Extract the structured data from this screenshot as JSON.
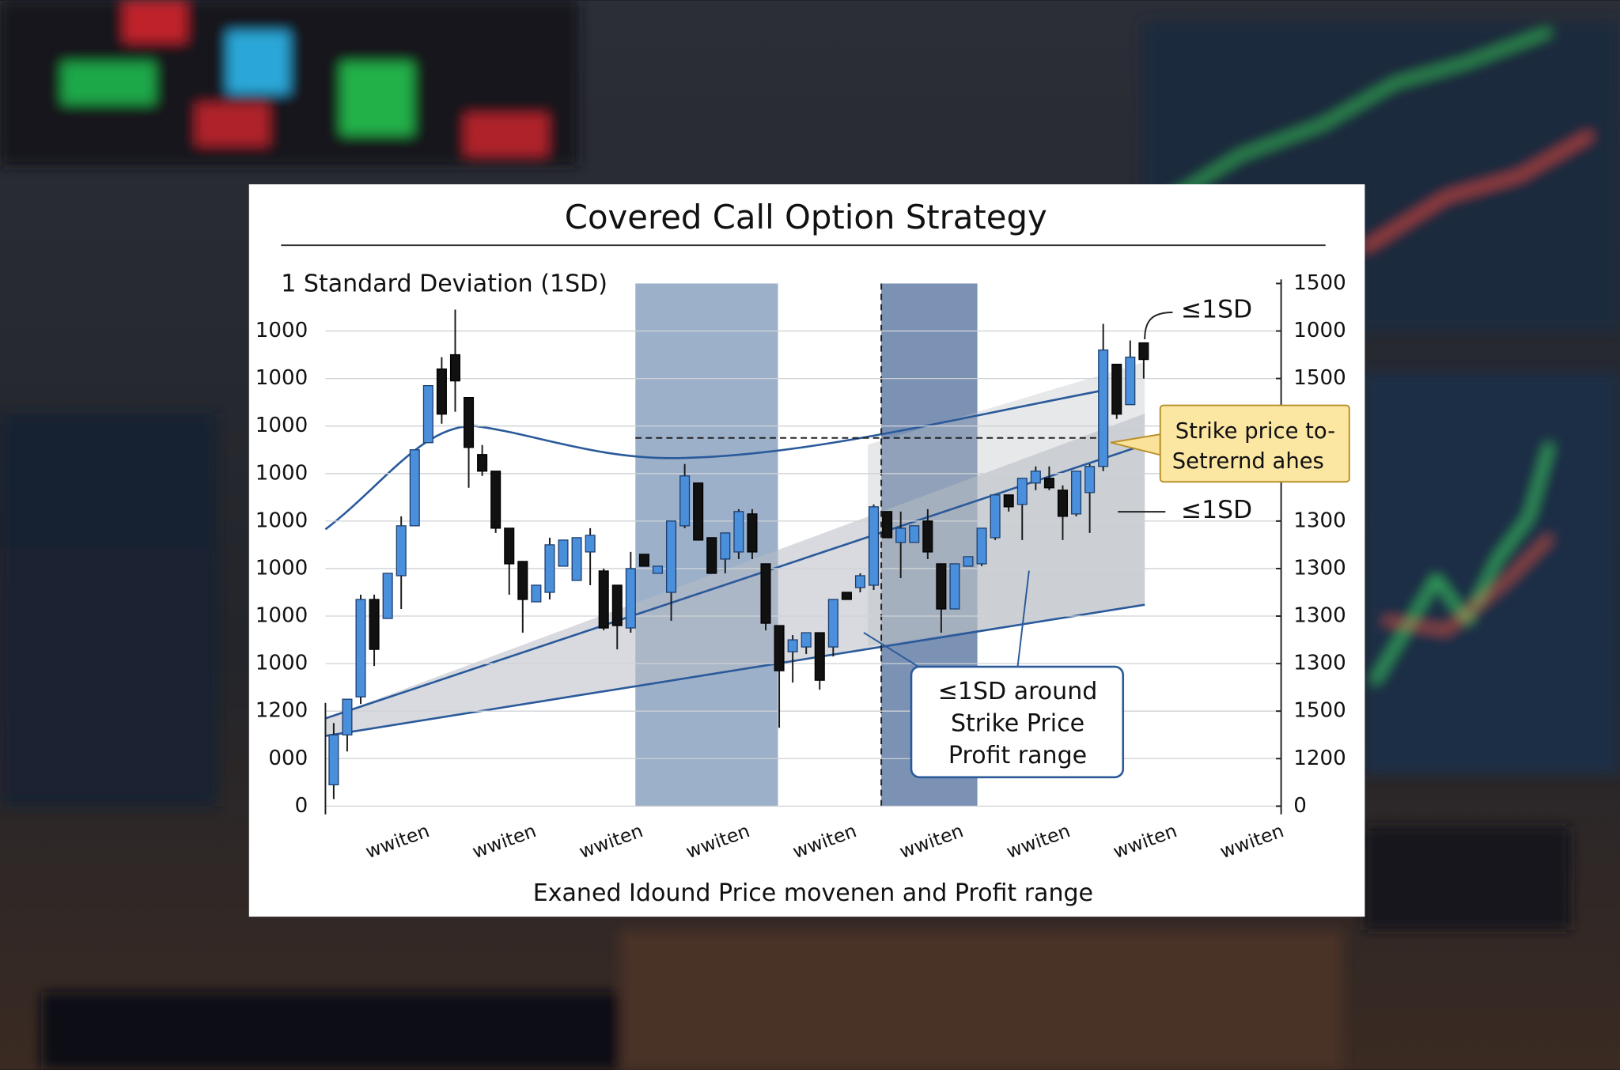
{
  "chart_data": {
    "type": "candlestick",
    "title": "Covered Call Option Strategy",
    "y_label": "1 Standard Deviation (1SD)",
    "x_label": "Exaned Idound Price movenen and Profit range",
    "x_tick_labels": [
      "wwiten",
      "wwiten",
      "wwiten",
      "wwiten",
      "wwiten",
      "wwiten",
      "wwiten",
      "wwiten",
      "wwiten"
    ],
    "open": [
      45,
      150,
      230,
      435,
      395,
      485,
      590,
      765,
      920,
      950,
      860,
      740,
      705,
      585,
      515,
      430,
      450,
      505,
      475,
      535,
      495,
      465,
      375,
      530,
      490,
      450,
      590,
      680,
      565,
      520,
      535,
      615,
      510,
      380,
      325,
      335,
      365,
      335,
      450,
      460,
      465,
      620,
      555,
      555,
      600,
      510,
      415,
      505,
      510,
      565,
      655,
      635,
      680,
      690,
      665,
      615,
      660,
      715,
      930,
      845,
      975
    ],
    "high": [
      175,
      225,
      445,
      445,
      490,
      610,
      750,
      885,
      945,
      1045,
      860,
      760,
      705,
      585,
      515,
      465,
      565,
      560,
      565,
      585,
      500,
      465,
      535,
      530,
      505,
      600,
      720,
      680,
      565,
      575,
      625,
      625,
      510,
      380,
      360,
      365,
      365,
      435,
      450,
      490,
      635,
      620,
      620,
      590,
      625,
      510,
      510,
      525,
      585,
      655,
      655,
      690,
      715,
      715,
      675,
      705,
      720,
      1015,
      930,
      980,
      975
    ],
    "low": [
      15,
      115,
      215,
      295,
      395,
      415,
      590,
      765,
      805,
      830,
      670,
      695,
      575,
      445,
      365,
      430,
      435,
      505,
      475,
      465,
      370,
      330,
      365,
      505,
      490,
      390,
      585,
      560,
      490,
      490,
      520,
      520,
      370,
      165,
      260,
      320,
      245,
      315,
      435,
      450,
      455,
      565,
      480,
      555,
      520,
      365,
      415,
      505,
      505,
      560,
      620,
      560,
      665,
      665,
      560,
      610,
      575,
      705,
      815,
      845,
      900
    ],
    "close": [
      150,
      225,
      435,
      330,
      490,
      590,
      750,
      885,
      825,
      895,
      755,
      705,
      585,
      510,
      435,
      465,
      550,
      560,
      565,
      570,
      375,
      380,
      500,
      505,
      505,
      600,
      695,
      560,
      490,
      575,
      620,
      535,
      385,
      285,
      350,
      365,
      265,
      435,
      435,
      485,
      630,
      565,
      585,
      590,
      535,
      415,
      510,
      525,
      585,
      655,
      630,
      690,
      705,
      670,
      610,
      705,
      715,
      960,
      825,
      945,
      940
    ],
    "up_color": "#4a8fdc",
    "down_color": "#111111",
    "ylim": [
      0,
      1100
    ],
    "yticks": [
      0,
      {
        "value": 100,
        "label": "000"
      },
      {
        "value": 200,
        "label": "1200"
      },
      {
        "value": 300,
        "label": "1000"
      },
      {
        "value": 400,
        "label": "1000"
      },
      {
        "value": 500,
        "label": "1000"
      },
      {
        "value": 600,
        "label": "1000"
      },
      {
        "value": 700,
        "label": "1000"
      },
      {
        "value": 800,
        "label": "1000"
      },
      {
        "value": 900,
        "label": "1000"
      },
      1000
    ],
    "y2lim": [
      0,
      1100
    ],
    "y2ticks": [
      0,
      {
        "value": 100,
        "label": "1200"
      },
      {
        "value": 200,
        "label": "1500"
      },
      {
        "value": 300,
        "label": "1300"
      },
      {
        "value": 400,
        "label": "1300"
      },
      {
        "value": 500,
        "label": "1300"
      },
      {
        "value": 600,
        "label": "1300"
      },
      {
        "value": 900,
        "label": "1500"
      },
      1000,
      {
        "value": 1100,
        "label": "1500"
      }
    ],
    "grid": true,
    "strike": 775,
    "annotations": {
      "upper_sd": "≤1SD",
      "lower_sd": "≤1SD",
      "strike_note": [
        "Strike price to-",
        "Setrernd ahes"
      ],
      "profit_note": [
        "≤1SD around",
        "Strike Price",
        "Profit range"
      ]
    }
  }
}
